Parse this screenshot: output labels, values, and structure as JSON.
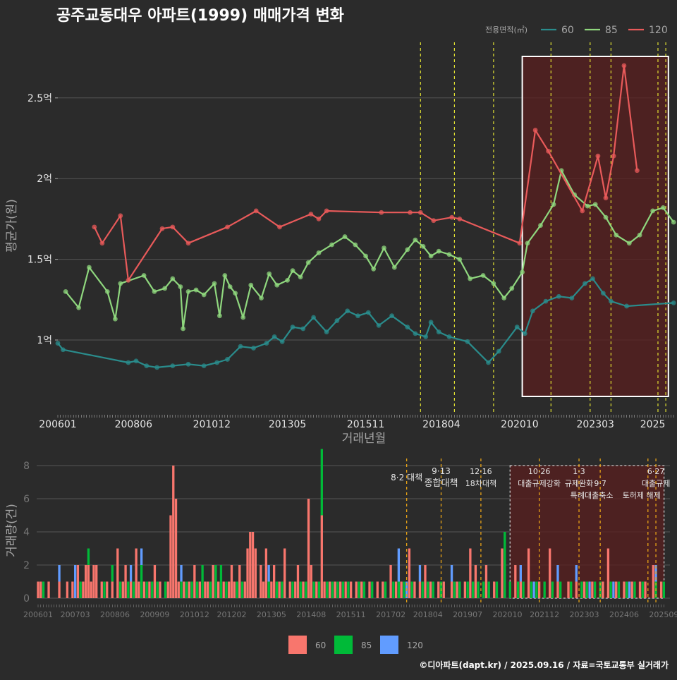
{
  "title": "공주교동대우 아파트(1999) 매매가격 변화",
  "footer": "©디아파트(dapt.kr) / 2025.09.16 / 자료=국토교통부 실거래가",
  "colors": {
    "area60": "#2a8c8c",
    "area85": "#8fd77e",
    "area120": "#e85a5a",
    "bar60": "#f8766d",
    "bar85": "#00ba38",
    "bar120": "#619cff",
    "policy": "#e2e232",
    "policy_bar": "#e8a317",
    "highlight": "#5a1f1f"
  },
  "chart_data": [
    {
      "type": "line",
      "title": "공주교동대우 아파트(1999) 매매가격 변화",
      "xlabel": "거래년월",
      "ylabel": "평균가(원)",
      "ylim": [
        5500,
        28000
      ],
      "y_ticks": [
        {
          "value": 10000,
          "label": "1억"
        },
        {
          "value": 15000,
          "label": "1.5억"
        },
        {
          "value": 20000,
          "label": "2억"
        },
        {
          "value": 25000,
          "label": "2.5억"
        }
      ],
      "x_ticks": [
        "200601",
        "200806",
        "201012",
        "201305",
        "201511",
        "201804",
        "202010",
        "202303",
        "2025"
      ],
      "legend_title": "전용면적(㎡)",
      "legend_position": "top-right",
      "grid": true,
      "highlight_range": [
        "2020-11",
        "2025-07"
      ],
      "policy_lines": [
        "2017-08",
        "2018-09",
        "2019-12",
        "2021-10",
        "2023-01",
        "2023-09",
        "2025-03",
        "2025-06"
      ],
      "series": [
        {
          "name": "60",
          "color_key": "area60",
          "points": [
            [
              "2006-01",
              9800
            ],
            [
              "2006-03",
              9400
            ],
            [
              "2008-04",
              8600
            ],
            [
              "2008-07",
              8700
            ],
            [
              "2008-11",
              8400
            ],
            [
              "2009-03",
              8300
            ],
            [
              "2009-09",
              8400
            ],
            [
              "2010-03",
              8500
            ],
            [
              "2010-09",
              8400
            ],
            [
              "2011-02",
              8600
            ],
            [
              "2011-06",
              8800
            ],
            [
              "2011-11",
              9600
            ],
            [
              "2012-04",
              9500
            ],
            [
              "2012-09",
              9800
            ],
            [
              "2012-12",
              10200
            ],
            [
              "2013-03",
              9900
            ],
            [
              "2013-07",
              10800
            ],
            [
              "2013-11",
              10700
            ],
            [
              "2014-03",
              11400
            ],
            [
              "2014-08",
              10500
            ],
            [
              "2014-12",
              11200
            ],
            [
              "2015-04",
              11800
            ],
            [
              "2015-08",
              11500
            ],
            [
              "2015-12",
              11700
            ],
            [
              "2016-04",
              10900
            ],
            [
              "2016-09",
              11500
            ],
            [
              "2017-03",
              10800
            ],
            [
              "2017-06",
              10400
            ],
            [
              "2017-10",
              10200
            ],
            [
              "2017-12",
              11100
            ],
            [
              "2018-03",
              10500
            ],
            [
              "2018-07",
              10200
            ],
            [
              "2019-02",
              9900
            ],
            [
              "2019-10",
              8600
            ],
            [
              "2020-02",
              9300
            ],
            [
              "2020-09",
              10800
            ],
            [
              "2020-12",
              10400
            ],
            [
              "2021-03",
              11800
            ],
            [
              "2021-08",
              12400
            ],
            [
              "2022-01",
              12700
            ],
            [
              "2022-06",
              12600
            ],
            [
              "2022-11",
              13500
            ],
            [
              "2023-02",
              13800
            ],
            [
              "2023-06",
              12900
            ],
            [
              "2023-09",
              12400
            ],
            [
              "2024-03",
              12100
            ],
            [
              "2025-09",
              12300
            ]
          ]
        },
        {
          "name": "85",
          "color_key": "area85",
          "points": [
            [
              "2006-04",
              13000
            ],
            [
              "2006-09",
              12000
            ],
            [
              "2007-01",
              14500
            ],
            [
              "2007-08",
              13000
            ],
            [
              "2007-11",
              11300
            ],
            [
              "2008-01",
              13500
            ],
            [
              "2008-10",
              14000
            ],
            [
              "2009-02",
              13000
            ],
            [
              "2009-06",
              13200
            ],
            [
              "2009-09",
              13800
            ],
            [
              "2009-12",
              13300
            ],
            [
              "2010-01",
              10700
            ],
            [
              "2010-03",
              13000
            ],
            [
              "2010-06",
              13100
            ],
            [
              "2010-09",
              12800
            ],
            [
              "2011-01",
              13500
            ],
            [
              "2011-03",
              11500
            ],
            [
              "2011-05",
              14000
            ],
            [
              "2011-07",
              13300
            ],
            [
              "2011-09",
              12900
            ],
            [
              "2011-12",
              11400
            ],
            [
              "2012-03",
              13400
            ],
            [
              "2012-07",
              12600
            ],
            [
              "2012-10",
              14100
            ],
            [
              "2013-01",
              13400
            ],
            [
              "2013-05",
              13700
            ],
            [
              "2013-07",
              14300
            ],
            [
              "2013-10",
              13900
            ],
            [
              "2014-01",
              14800
            ],
            [
              "2014-05",
              15400
            ],
            [
              "2014-10",
              15900
            ],
            [
              "2015-03",
              16400
            ],
            [
              "2015-07",
              15900
            ],
            [
              "2015-11",
              15200
            ],
            [
              "2016-02",
              14400
            ],
            [
              "2016-06",
              15700
            ],
            [
              "2016-10",
              14500
            ],
            [
              "2017-03",
              15600
            ],
            [
              "2017-06",
              16200
            ],
            [
              "2017-09",
              15800
            ],
            [
              "2017-12",
              15200
            ],
            [
              "2018-03",
              15500
            ],
            [
              "2018-07",
              15300
            ],
            [
              "2018-11",
              15000
            ],
            [
              "2019-03",
              13800
            ],
            [
              "2019-08",
              14000
            ],
            [
              "2019-12",
              13500
            ],
            [
              "2020-04",
              12600
            ],
            [
              "2020-07",
              13200
            ],
            [
              "2020-11",
              14200
            ],
            [
              "2021-01",
              16000
            ],
            [
              "2021-06",
              17100
            ],
            [
              "2021-11",
              18400
            ],
            [
              "2022-02",
              20500
            ],
            [
              "2022-07",
              19000
            ],
            [
              "2022-12",
              18300
            ],
            [
              "2023-03",
              18400
            ],
            [
              "2023-07",
              17600
            ],
            [
              "2023-11",
              16500
            ],
            [
              "2024-04",
              16000
            ],
            [
              "2024-08",
              16500
            ],
            [
              "2025-01",
              18000
            ],
            [
              "2025-05",
              18200
            ],
            [
              "2025-09",
              17300
            ]
          ]
        },
        {
          "name": "120",
          "color_key": "area120",
          "points": [
            [
              "2007-03",
              17000
            ],
            [
              "2007-06",
              16000
            ],
            [
              "2008-01",
              17700
            ],
            [
              "2008-04",
              13700
            ],
            [
              "2009-05",
              16900
            ],
            [
              "2009-09",
              17000
            ],
            [
              "2010-03",
              16000
            ],
            [
              "2011-06",
              17000
            ],
            [
              "2012-05",
              18000
            ],
            [
              "2013-02",
              17000
            ],
            [
              "2014-02",
              17800
            ],
            [
              "2014-05",
              17500
            ],
            [
              "2014-08",
              18000
            ],
            [
              "2016-05",
              17900
            ],
            [
              "2017-04",
              17900
            ],
            [
              "2017-08",
              17900
            ],
            [
              "2018-01",
              17400
            ],
            [
              "2018-08",
              17600
            ],
            [
              "2018-11",
              17500
            ],
            [
              "2020-10",
              16000
            ],
            [
              "2021-04",
              23000
            ],
            [
              "2021-09",
              21700
            ],
            [
              "2022-10",
              18000
            ],
            [
              "2023-04",
              21400
            ],
            [
              "2023-07",
              18800
            ],
            [
              "2023-10",
              21400
            ],
            [
              "2024-02",
              27000
            ],
            [
              "2024-07",
              20500
            ]
          ]
        }
      ]
    },
    {
      "type": "bar",
      "ylabel": "거래량(건)",
      "ylim": [
        0,
        8
      ],
      "y_ticks": [
        0,
        2,
        4,
        6,
        8
      ],
      "x_ticks": [
        "200601",
        "200703",
        "200806",
        "200909",
        "201012",
        "201202",
        "201305",
        "201408",
        "201511",
        "201702",
        "201804",
        "201907",
        "202010",
        "202112",
        "202303",
        "202406",
        "202509"
      ],
      "legend_position": "bottom",
      "stacked": true,
      "highlight_range": [
        "2020-11",
        "2025-08"
      ],
      "policies": [
        {
          "date": "2017-08",
          "label": "8·2 대책"
        },
        {
          "date": "2018-09",
          "label": "9·13\n종합대책"
        },
        {
          "date": "2019-12",
          "label": "12·16\n18차대책"
        },
        {
          "date": "2021-10",
          "label": "10·26\n대출규제강화"
        },
        {
          "date": "2023-01",
          "label": "1·3\n규제완화"
        },
        {
          "date": "2023-09",
          "label": "9·7\n특례대출축소"
        },
        {
          "date": "2025-03",
          "label": "토허제 해제"
        },
        {
          "date": "2025-06",
          "label": "6·27\n대출규제"
        }
      ],
      "series": [
        {
          "name": "60",
          "color_key": "bar60",
          "values": {
            "2006-01": 1,
            "2006-02": 1,
            "2006-05": 1,
            "2006-09": 1,
            "2006-12": 1,
            "2007-02": 1,
            "2007-04": 2,
            "2007-06": 1,
            "2007-07": 2,
            "2007-08": 2,
            "2007-09": 1,
            "2007-10": 2,
            "2007-11": 2,
            "2008-01": 1,
            "2008-03": 1,
            "2008-05": 1,
            "2008-07": 3,
            "2008-09": 1,
            "2008-10": 2,
            "2008-12": 1,
            "2009-02": 3,
            "2009-03": 1,
            "2009-05": 1,
            "2009-07": 1,
            "2009-09": 2,
            "2009-11": 1,
            "2010-02": 1,
            "2010-03": 5,
            "2010-04": 8,
            "2010-05": 6,
            "2010-06": 1,
            "2010-08": 1,
            "2010-10": 1,
            "2010-12": 2,
            "2011-02": 1,
            "2011-04": 1,
            "2011-05": 1,
            "2011-07": 2,
            "2011-09": 1,
            "2011-11": 1,
            "2012-01": 1,
            "2012-02": 2,
            "2012-03": 1,
            "2012-05": 2,
            "2012-07": 1,
            "2012-08": 3,
            "2012-09": 4,
            "2012-10": 4,
            "2012-11": 3,
            "2013-01": 2,
            "2013-02": 1,
            "2013-03": 3,
            "2013-05": 1,
            "2013-06": 2,
            "2013-08": 1,
            "2013-10": 3,
            "2013-12": 1,
            "2014-02": 1,
            "2014-03": 2,
            "2014-05": 1,
            "2014-07": 6,
            "2014-08": 2,
            "2014-10": 1,
            "2014-12": 5,
            "2015-01": 1,
            "2015-03": 1,
            "2015-05": 1,
            "2015-07": 1,
            "2015-09": 1,
            "2015-11": 1,
            "2016-01": 1,
            "2016-03": 1,
            "2016-06": 1,
            "2016-09": 1,
            "2016-11": 1,
            "2017-02": 2,
            "2017-04": 1,
            "2017-06": 1,
            "2017-09": 3,
            "2017-11": 1,
            "2018-01": 1,
            "2018-03": 2,
            "2018-05": 1,
            "2018-08": 1,
            "2018-10": 1,
            "2019-01": 1,
            "2019-03": 1,
            "2019-06": 1,
            "2019-08": 3,
            "2019-10": 2,
            "2020-02": 2,
            "2020-05": 1,
            "2020-08": 3,
            "2021-01": 2,
            "2021-03": 1,
            "2021-06": 3,
            "2021-10": 1,
            "2022-02": 3,
            "2022-05": 1,
            "2022-09": 1,
            "2022-12": 1,
            "2023-03": 1,
            "2023-06": 1,
            "2023-10": 1,
            "2023-12": 3,
            "2024-03": 1,
            "2024-06": 1,
            "2024-09": 1,
            "2024-12": 1,
            "2025-02": 1,
            "2025-05": 2,
            "2025-08": 1
          }
        },
        {
          "name": "85",
          "color_key": "bar85",
          "values": {
            "2006-03": 1,
            "2007-05": 1,
            "2007-08": 1,
            "2008-02": 1,
            "2008-05": 1,
            "2008-08": 1,
            "2008-11": 1,
            "2009-01": 1,
            "2009-04": 2,
            "2009-06": 1,
            "2009-08": 1,
            "2009-10": 1,
            "2010-01": 1,
            "2010-07": 1,
            "2010-09": 1,
            "2010-11": 1,
            "2011-01": 1,
            "2011-03": 2,
            "2011-06": 1,
            "2011-08": 2,
            "2011-10": 2,
            "2011-12": 1,
            "2012-04": 1,
            "2012-06": 1,
            "2013-04": 1,
            "2013-07": 1,
            "2013-09": 1,
            "2014-01": 1,
            "2014-04": 1,
            "2014-06": 1,
            "2014-09": 1,
            "2014-11": 1,
            "2014-12": 4,
            "2015-02": 1,
            "2015-04": 1,
            "2015-06": 1,
            "2015-08": 1,
            "2015-10": 1,
            "2016-02": 1,
            "2016-04": 1,
            "2016-07": 1,
            "2016-12": 1,
            "2017-03": 1,
            "2017-05": 1,
            "2017-07": 1,
            "2017-10": 1,
            "2018-02": 1,
            "2018-04": 1,
            "2018-06": 1,
            "2018-09": 1,
            "2019-02": 1,
            "2019-04": 1,
            "2019-07": 1,
            "2019-09": 1,
            "2019-11": 1,
            "2020-01": 1,
            "2020-03": 1,
            "2020-06": 1,
            "2020-09": 4,
            "2020-11": 1,
            "2021-02": 1,
            "2021-04": 1,
            "2021-07": 1,
            "2021-09": 1,
            "2021-12": 1,
            "2022-03": 1,
            "2022-06": 1,
            "2022-10": 1,
            "2023-02": 1,
            "2023-04": 1,
            "2023-07": 1,
            "2023-09": 1,
            "2024-01": 1,
            "2024-04": 1,
            "2024-07": 1,
            "2024-10": 1,
            "2025-01": 1,
            "2025-06": 1,
            "2025-09": 1
          }
        },
        {
          "name": "120",
          "color_key": "bar120",
          "values": {
            "2006-09": 1,
            "2007-03": 2,
            "2008-12": 1,
            "2009-04": 1,
            "2010-07": 1,
            "2013-04": 1,
            "2017-05": 2,
            "2017-08": 1,
            "2018-01": 1,
            "2019-01": 1,
            "2021-03": 1,
            "2021-08": 1,
            "2022-05": 1,
            "2022-12": 1,
            "2023-05": 1,
            "2024-02": 1,
            "2024-08": 1,
            "2025-06": 1
          }
        }
      ]
    }
  ]
}
